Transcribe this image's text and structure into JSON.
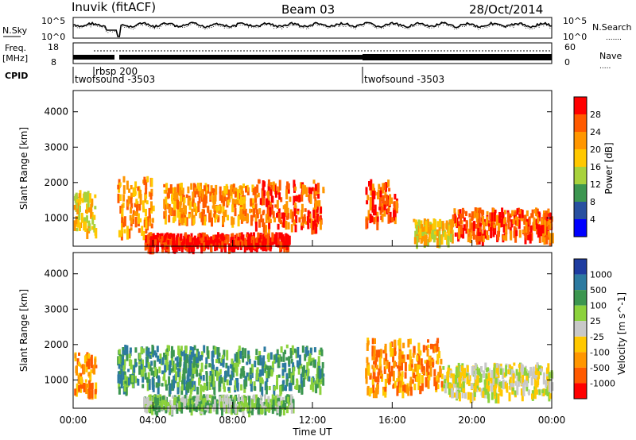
{
  "header": {
    "station": "Inuvik (fitACF)",
    "beam": "Beam 03",
    "date": "28/Oct/2014"
  },
  "noise_panel": {
    "left_label": "N.Sky",
    "right_label": "N.Search",
    "left_ticks": [
      "10^5",
      "10^0"
    ],
    "right_ticks": [
      "10^5",
      "10^0"
    ]
  },
  "freq_panel": {
    "left_label_1": "Freq.",
    "left_label_2": "[MHz]",
    "right_label": "Nave",
    "left_ticks": [
      "18",
      "8"
    ],
    "right_ticks": [
      "60",
      "0"
    ]
  },
  "cpid": {
    "label": "CPID",
    "segments": [
      {
        "start_hour": 0,
        "name": "twofsound -3503"
      },
      {
        "start_hour": 1.08,
        "name": "rbsp 200"
      },
      {
        "start_hour": 14.6,
        "name": "twofsound -3503"
      }
    ]
  },
  "chart_data": [
    {
      "type": "heatmap",
      "title": "",
      "ylabel": "Slant Range [km]",
      "xlabel": "",
      "xlim": [
        0,
        24
      ],
      "ylim": [
        200,
        4600
      ],
      "yticks": [
        "1000",
        "2000",
        "3000",
        "4000"
      ],
      "colorbar": {
        "label": "Power [dB]",
        "ticks": [
          "28",
          "24",
          "20",
          "16",
          "12",
          "8",
          "4"
        ],
        "colors": [
          "#ff0000",
          "#ff5a00",
          "#ff9600",
          "#ffc800",
          "#a8d23c",
          "#3c9650",
          "#2850a0",
          "#0000ff"
        ]
      },
      "features": [
        {
          "t0": 0.0,
          "t1": 1.1,
          "r0": 700,
          "r1": 1800,
          "level": 3
        },
        {
          "t0": 2.2,
          "t1": 4.0,
          "r0": 600,
          "r1": 2200,
          "level": 2
        },
        {
          "t0": 3.5,
          "t1": 10.8,
          "r0": 250,
          "r1": 600,
          "level": 0
        },
        {
          "t0": 4.5,
          "t1": 9.0,
          "r0": 1000,
          "r1": 2000,
          "level": 2
        },
        {
          "t0": 9.0,
          "t1": 12.5,
          "r0": 800,
          "r1": 2100,
          "level": 1
        },
        {
          "t0": 14.6,
          "t1": 16.2,
          "r0": 900,
          "r1": 2100,
          "level": 1
        },
        {
          "t0": 19.0,
          "t1": 24.0,
          "r0": 500,
          "r1": 1300,
          "level": 1
        },
        {
          "t0": 17.0,
          "t1": 19.0,
          "r0": 400,
          "r1": 1000,
          "level": 3
        }
      ]
    },
    {
      "type": "heatmap",
      "title": "",
      "ylabel": "Slant Range [km]",
      "xlabel": "Time UT",
      "xlim": [
        0,
        24
      ],
      "ylim": [
        200,
        4600
      ],
      "xticks": [
        "00:00",
        "04:00",
        "08:00",
        "12:00",
        "16:00",
        "20:00",
        "00:00"
      ],
      "yticks": [
        "1000",
        "2000",
        "3000",
        "4000"
      ],
      "colorbar": {
        "label": "Velocity [m s^-1]",
        "ticks": [
          "1000",
          "500",
          "100",
          "25",
          "-25",
          "-100",
          "-500",
          "-1000"
        ],
        "colors": [
          "#1e3ca0",
          "#2c7aa0",
          "#3c9650",
          "#8cd23c",
          "#c8c8c8",
          "#ffc800",
          "#ff9600",
          "#ff5a00",
          "#ff0000"
        ]
      },
      "features": [
        {
          "t0": 0.0,
          "t1": 1.1,
          "r0": 700,
          "r1": 1800,
          "level": 6
        },
        {
          "t0": 2.2,
          "t1": 12.5,
          "r0": 800,
          "r1": 2000,
          "level": 2
        },
        {
          "t0": 3.5,
          "t1": 11.0,
          "r0": 250,
          "r1": 600,
          "level": 3
        },
        {
          "t0": 14.6,
          "t1": 18.5,
          "r0": 700,
          "r1": 2200,
          "level": 6
        },
        {
          "t0": 18.5,
          "t1": 24.0,
          "r0": 600,
          "r1": 1500,
          "level": 4
        }
      ]
    }
  ]
}
